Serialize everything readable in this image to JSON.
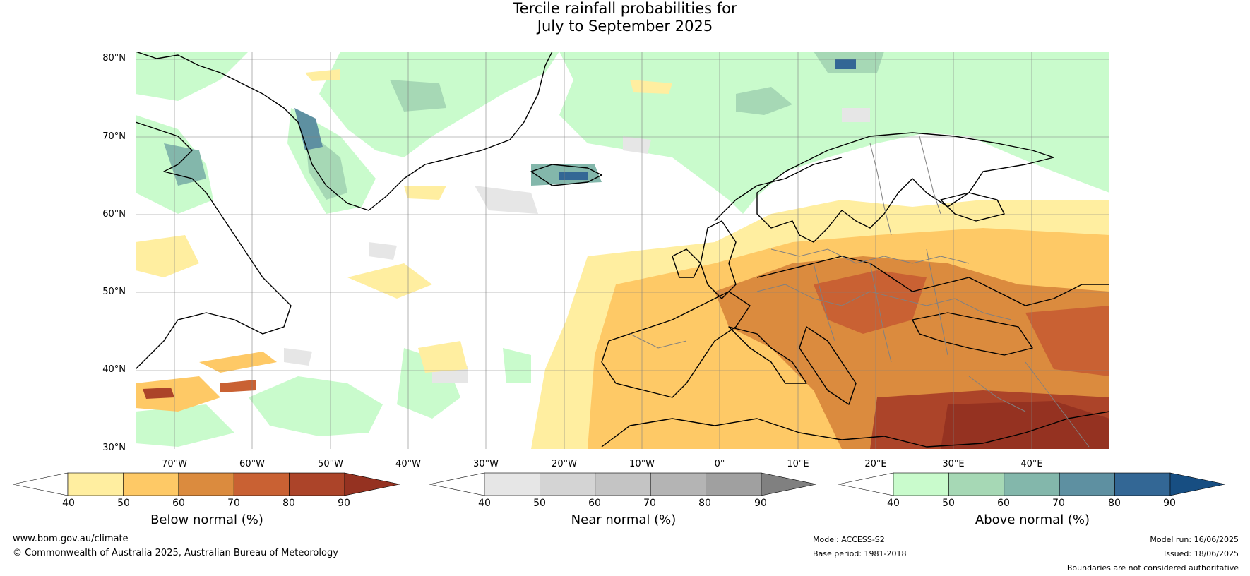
{
  "title_line1": "Tercile rainfall probabilities for",
  "title_line2": "July to September 2025",
  "lat_ticks": [
    "80°N",
    "70°N",
    "60°N",
    "50°N",
    "40°N",
    "30°N"
  ],
  "lon_ticks": [
    "70°W",
    "60°W",
    "50°W",
    "40°W",
    "30°W",
    "20°W",
    "10°W",
    "0°",
    "10°E",
    "20°E",
    "30°E",
    "40°E"
  ],
  "colorbars": [
    {
      "title": "Below normal (%)",
      "ticks": [
        "40",
        "50",
        "60",
        "70",
        "80",
        "90"
      ],
      "colors": [
        "#ffffff",
        "#ffeea0",
        "#fec966",
        "#db8b3e",
        "#c96133",
        "#ac4429",
        "#953221"
      ]
    },
    {
      "title": "Near normal (%)",
      "ticks": [
        "40",
        "50",
        "60",
        "70",
        "80",
        "90"
      ],
      "colors": [
        "#ffffff",
        "#e6e6e6",
        "#d4d4d4",
        "#c4c4c4",
        "#b4b4b4",
        "#a0a0a0",
        "#808080"
      ]
    },
    {
      "title": "Above normal (%)",
      "ticks": [
        "40",
        "50",
        "60",
        "70",
        "80",
        "90"
      ],
      "colors": [
        "#ffffff",
        "#c9fbcc",
        "#a6d8b5",
        "#83b7ab",
        "#5e90a1",
        "#336795",
        "#174e82"
      ]
    }
  ],
  "footer": {
    "url": "www.bom.gov.au/climate",
    "copyright": "© Commonwealth of Australia 2025, Australian Bureau of Meteorology",
    "model": "Model: ACCESS-S2",
    "base_period": "Base period: 1981-2018",
    "model_run": "Model run: 16/06/2025",
    "issued": "Issued: 18/06/2025",
    "disclaimer": "Boundaries are not considered authoritative"
  }
}
